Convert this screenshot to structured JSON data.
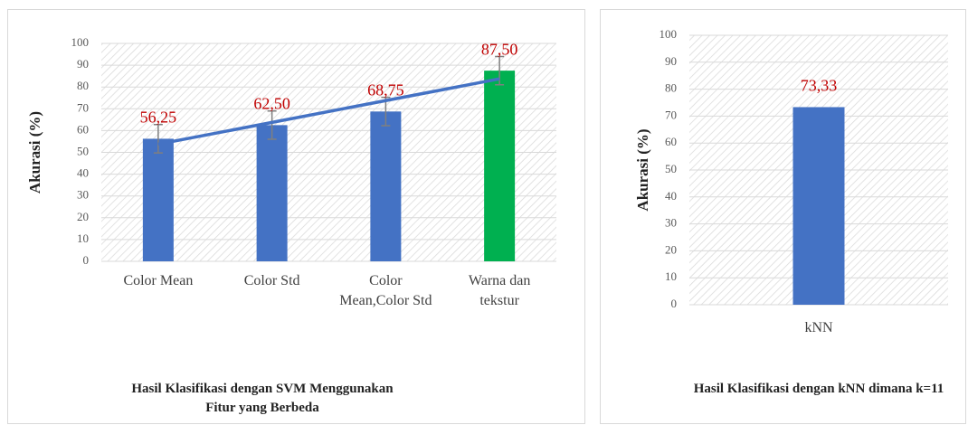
{
  "chart_data": [
    {
      "type": "bar",
      "title": "Hasil Klasifikasi dengan SVM Menggunakan Fitur yang Berbeda",
      "ylabel": "Akurasi (%)",
      "categories": [
        "Color Mean",
        "Color Std",
        "Color Mean,Color Std",
        "Warna dan tekstur"
      ],
      "values": [
        56.25,
        62.5,
        68.75,
        87.5
      ],
      "value_labels": [
        "56,25",
        "62,50",
        "68,75",
        "87,50"
      ],
      "errors": [
        6.5,
        6.5,
        6.5,
        6.5
      ],
      "colors": [
        "#4472c4",
        "#4472c4",
        "#4472c4",
        "#00b050"
      ],
      "value_label_color": "#c00000",
      "trendline": "linear",
      "trendline_color": "#4472c4",
      "ylim": [
        0,
        100
      ],
      "yticks": [
        0,
        10,
        20,
        30,
        40,
        50,
        60,
        70,
        80,
        90,
        100
      ],
      "grid": true
    },
    {
      "type": "bar",
      "title": "Hasil Klasifikasi dengan kNN dimana k=11",
      "ylabel": "Akurasi (%)",
      "categories": [
        "kNN"
      ],
      "values": [
        73.33
      ],
      "value_labels": [
        "73,33"
      ],
      "colors": [
        "#4472c4"
      ],
      "value_label_color": "#c00000",
      "ylim": [
        0,
        100
      ],
      "yticks": [
        0,
        10,
        20,
        30,
        40,
        50,
        60,
        70,
        80,
        90,
        100
      ],
      "grid": true
    }
  ]
}
